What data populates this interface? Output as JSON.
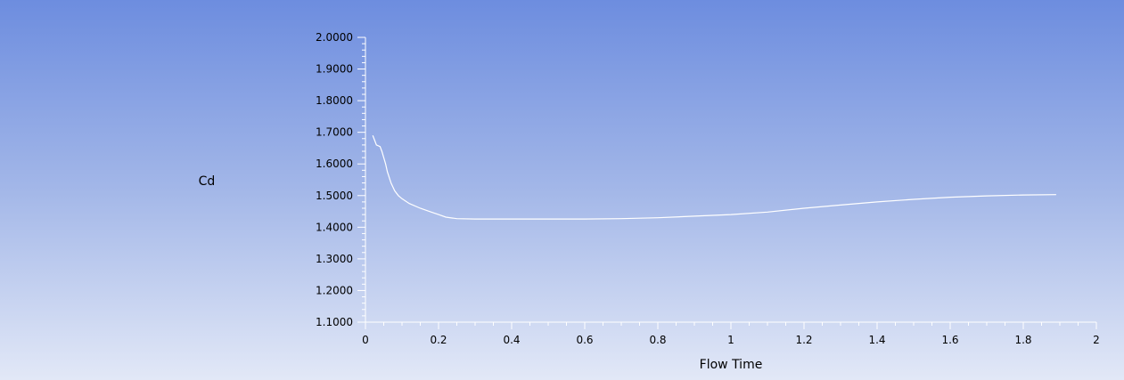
{
  "colors": {
    "background_top": "#6d8ddf",
    "background_bottom": "#e2e8f7",
    "axis": "#ffffff",
    "series": "#ffffff",
    "text": "#000000"
  },
  "chart_data": {
    "type": "line",
    "title": "",
    "xlabel": "Flow Time",
    "ylabel": "Cd",
    "xlim": [
      0,
      2
    ],
    "ylim": [
      1.1,
      2.0
    ],
    "x_ticks": [
      0,
      0.2,
      0.4,
      0.6,
      0.8,
      1,
      1.2,
      1.4,
      1.6,
      1.8,
      2
    ],
    "x_tick_labels": [
      "0",
      "0.2",
      "0.4",
      "0.6",
      "0.8",
      "1",
      "1.2",
      "1.4",
      "1.6",
      "1.8",
      "2"
    ],
    "y_ticks": [
      1.1,
      1.2,
      1.3,
      1.4,
      1.5,
      1.6,
      1.7,
      1.8,
      1.9,
      2.0
    ],
    "y_tick_labels": [
      "1.1000",
      "1.2000",
      "1.3000",
      "1.4000",
      "1.5000",
      "1.6000",
      "1.7000",
      "1.8000",
      "1.9000",
      "2.0000"
    ],
    "grid": false,
    "series": [
      {
        "x": [
          0.02,
          0.025,
          0.03,
          0.04,
          0.045,
          0.05,
          0.055,
          0.06,
          0.07,
          0.08,
          0.09,
          0.1,
          0.12,
          0.15,
          0.18,
          0.2,
          0.22,
          0.25,
          0.3,
          0.4,
          0.5,
          0.6,
          0.7,
          0.8,
          0.9,
          1.0,
          1.1,
          1.2,
          1.3,
          1.4,
          1.5,
          1.6,
          1.7,
          1.8,
          1.89
        ],
        "y": [
          1.69,
          1.675,
          1.66,
          1.655,
          1.64,
          1.62,
          1.6,
          1.575,
          1.54,
          1.515,
          1.5,
          1.49,
          1.475,
          1.46,
          1.448,
          1.44,
          1.432,
          1.427,
          1.426,
          1.426,
          1.426,
          1.426,
          1.427,
          1.43,
          1.435,
          1.44,
          1.448,
          1.46,
          1.47,
          1.48,
          1.488,
          1.495,
          1.499,
          1.502,
          1.503
        ]
      }
    ]
  }
}
